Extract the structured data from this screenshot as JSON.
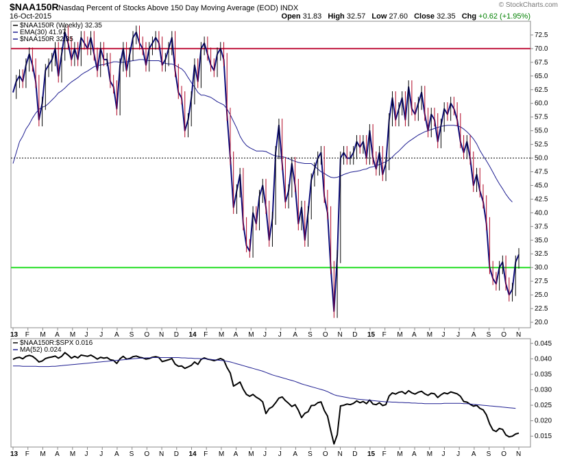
{
  "header": {
    "symbol": "$NAA150R",
    "title": "Nasdaq Percent of Stocks Above 150 Day Moving Average (EOD)",
    "exchange": "INDX",
    "date": "16-Oct-2015",
    "open_label": "Open",
    "open": "31.83",
    "high_label": "High",
    "high": "32.57",
    "low_label": "Low",
    "low": "27.60",
    "close_label": "Close",
    "close": "32.35",
    "chg_label": "Chg",
    "chg": "+0.62 (+1.95%)",
    "watermark": "© StockCharts.com",
    "colors": {
      "chg": "#008000"
    }
  },
  "chart_data": [
    {
      "type": "line",
      "legend": [
        "$NAA150R (Weekly) 32.35",
        "EMA(30) 41.97",
        "$NAA150R 32.35"
      ],
      "x_ticks": [
        "13",
        "F",
        "M",
        "A",
        "M",
        "J",
        "J",
        "A",
        "S",
        "O",
        "N",
        "D",
        "14",
        "F",
        "M",
        "A",
        "M",
        "J",
        "J",
        "A",
        "S",
        "O",
        "N",
        "D",
        "15",
        "F",
        "M",
        "A",
        "M",
        "J",
        "J",
        "A",
        "S",
        "O",
        "N"
      ],
      "y_ticks": [
        20,
        22.5,
        25,
        27.5,
        30,
        32.5,
        35,
        37.5,
        40,
        42.5,
        45,
        47.5,
        50,
        52.5,
        55,
        57.5,
        60,
        62.5,
        65,
        67.5,
        70,
        72.5
      ],
      "ylim": [
        19,
        75
      ],
      "hlines": [
        {
          "value": 70,
          "color": "#c0143c"
        },
        {
          "value": 50,
          "color": "#000000",
          "style": "dotted"
        },
        {
          "value": 30,
          "color": "#22dd22"
        }
      ],
      "series": [
        {
          "name": "$NAA150R (Weekly)",
          "color": "#0a0a78",
          "values": [
            62,
            64,
            65,
            64,
            67,
            69,
            67,
            64,
            57,
            60,
            66,
            67,
            68,
            70,
            65,
            69,
            73,
            71,
            68,
            70,
            68,
            72,
            71,
            70,
            72,
            69,
            66,
            70,
            68,
            68,
            64,
            63,
            59,
            67,
            70,
            66,
            69,
            72,
            73,
            71,
            70,
            67,
            70,
            71,
            72,
            71,
            67,
            68,
            70,
            72,
            66,
            62,
            61,
            55,
            57,
            61,
            67,
            64,
            70,
            71,
            69,
            67,
            66,
            69,
            70,
            68,
            58,
            50,
            41,
            44,
            47,
            38,
            34,
            33,
            40,
            38,
            43,
            45,
            41,
            35,
            39,
            51,
            56,
            49,
            42,
            44,
            49,
            45,
            38,
            41,
            35,
            40,
            46,
            48,
            50,
            51,
            43,
            40,
            30,
            22,
            32,
            50,
            51,
            50,
            50,
            51,
            53,
            52,
            53,
            50,
            55,
            50,
            48,
            51,
            47,
            49,
            57,
            61,
            57,
            59,
            61,
            57,
            63,
            59,
            58,
            60,
            62,
            58,
            55,
            58,
            57,
            53,
            56,
            59,
            58,
            60,
            59,
            57,
            53,
            51,
            53,
            50,
            45,
            47,
            44,
            42,
            38,
            30,
            28,
            27,
            30,
            31,
            27,
            25,
            26,
            31,
            32.35
          ]
        },
        {
          "name": "EMA(30)",
          "color": "#1c1c90",
          "values": [
            49,
            51,
            53,
            54,
            55.3,
            56.2,
            57.3,
            58.2,
            58.9,
            59.3,
            59.5,
            60,
            60.6,
            61.2,
            61.9,
            62.3,
            62.8,
            63.4,
            63.9,
            64.3,
            64.7,
            65.2,
            65.6,
            65.9,
            66.3,
            66.7,
            66.9,
            67,
            67.1,
            67.3,
            67.4,
            67.6,
            67.6,
            67.5,
            67.5,
            67.6,
            67.7,
            67.8,
            67.9,
            68,
            68,
            67.9,
            67.8,
            67.8,
            67.8,
            67.8,
            67.5,
            67.3,
            67.2,
            67.2,
            67,
            66.6,
            66.3,
            65.7,
            64.7,
            63.8,
            63,
            62,
            61.5,
            61.5,
            61.3,
            61.1,
            60.7,
            60.3,
            60,
            59.7,
            59,
            57.9,
            56.7,
            55.5,
            54,
            53,
            52.3,
            51.9,
            51.6,
            51.3,
            51.3,
            51.3,
            51.2,
            50.9,
            50.6,
            50.4,
            50.3,
            50.3,
            50.1,
            49.9,
            49.6,
            49.4,
            49.2,
            49.1,
            49,
            49,
            49,
            48.5,
            48,
            47.5,
            47.2,
            46.8,
            46.5,
            46.4,
            46.5,
            46.7,
            47,
            47.2,
            47.4,
            47.5,
            47.6,
            47.7,
            47.9,
            48,
            48.3,
            48.4,
            48.6,
            48.8,
            49.1,
            49.3,
            49.7,
            50.2,
            50.8,
            51.3,
            51.9,
            52.5,
            53,
            53.4,
            53.8,
            54.2,
            54.5,
            54.8,
            55,
            55.2,
            55.4,
            55.6,
            55.8,
            55.9,
            56,
            56,
            56,
            55.9,
            55.7,
            55.3,
            54.8,
            54.2,
            53.5,
            52.6,
            51.4,
            50.4,
            49.5,
            48.5,
            47.4,
            46.3,
            45.3,
            44.4,
            43.4,
            42.6,
            41.97
          ]
        }
      ]
    },
    {
      "type": "line",
      "legend": [
        "$NAA150R:$SPX 0.016",
        "MA(52) 0.024"
      ],
      "x_ticks": [
        "13",
        "F",
        "M",
        "A",
        "M",
        "J",
        "J",
        "A",
        "S",
        "O",
        "N",
        "D",
        "14",
        "F",
        "M",
        "A",
        "M",
        "J",
        "J",
        "A",
        "S",
        "O",
        "N",
        "D",
        "15",
        "F",
        "M",
        "A",
        "M",
        "J",
        "J",
        "A",
        "S",
        "O",
        "N"
      ],
      "y_ticks": [
        0.015,
        0.02,
        0.025,
        0.03,
        0.035,
        0.04,
        0.045
      ],
      "ylim": [
        0.0115,
        0.0465
      ],
      "series": [
        {
          "name": "$NAA150R:$SPX",
          "color": "#000000",
          "values": [
            0.0398,
            0.0403,
            0.0405,
            0.04,
            0.0408,
            0.0411,
            0.0408,
            0.04,
            0.039,
            0.0393,
            0.0401,
            0.0404,
            0.0406,
            0.0409,
            0.0402,
            0.0408,
            0.042,
            0.0412,
            0.0402,
            0.0408,
            0.0403,
            0.0412,
            0.041,
            0.0408,
            0.0412,
            0.0406,
            0.0399,
            0.0405,
            0.0402,
            0.0404,
            0.0397,
            0.0395,
            0.0385,
            0.04,
            0.0408,
            0.0399,
            0.0401,
            0.0407,
            0.0409,
            0.0405,
            0.0403,
            0.0399,
            0.0401,
            0.0405,
            0.0407,
            0.0404,
            0.0391,
            0.0394,
            0.0397,
            0.0401,
            0.0383,
            0.0376,
            0.0377,
            0.0369,
            0.0374,
            0.0379,
            0.039,
            0.0382,
            0.0398,
            0.0403,
            0.0399,
            0.0397,
            0.0394,
            0.0397,
            0.0401,
            0.0396,
            0.0372,
            0.0354,
            0.0312,
            0.0318,
            0.0325,
            0.0302,
            0.0285,
            0.0279,
            0.0285,
            0.0276,
            0.027,
            0.0261,
            0.0223,
            0.0239,
            0.0245,
            0.0258,
            0.0273,
            0.0277,
            0.0265,
            0.0256,
            0.0246,
            0.0252,
            0.0234,
            0.021,
            0.0224,
            0.0229,
            0.0249,
            0.025,
            0.0258,
            0.0261,
            0.0233,
            0.0215,
            0.0168,
            0.0125,
            0.0155,
            0.0248,
            0.025,
            0.0254,
            0.0252,
            0.0256,
            0.0264,
            0.0258,
            0.0262,
            0.0255,
            0.0267,
            0.0254,
            0.0252,
            0.0258,
            0.0249,
            0.0252,
            0.028,
            0.029,
            0.0286,
            0.0292,
            0.0294,
            0.0287,
            0.0297,
            0.029,
            0.0286,
            0.0292,
            0.0295,
            0.0287,
            0.0282,
            0.0289,
            0.0287,
            0.0275,
            0.0284,
            0.029,
            0.0287,
            0.0293,
            0.029,
            0.0287,
            0.0279,
            0.0262,
            0.026,
            0.0253,
            0.0247,
            0.025,
            0.024,
            0.0235,
            0.0219,
            0.019,
            0.017,
            0.0165,
            0.0175,
            0.0172,
            0.0154,
            0.0148,
            0.015,
            0.0157,
            0.016
          ]
        },
        {
          "name": "MA(52)",
          "color": "#1c1c90",
          "values": [
            0.0377,
            0.0377,
            0.0377,
            0.0376,
            0.0376,
            0.0376,
            0.0376,
            0.0376,
            0.0375,
            0.0375,
            0.0375,
            0.0375,
            0.0376,
            0.0376,
            0.0377,
            0.0378,
            0.0379,
            0.038,
            0.0381,
            0.0382,
            0.0383,
            0.0384,
            0.0385,
            0.0386,
            0.0387,
            0.0388,
            0.0389,
            0.039,
            0.0391,
            0.0392,
            0.0393,
            0.0394,
            0.0395,
            0.0396,
            0.0397,
            0.0398,
            0.0399,
            0.04,
            0.0401,
            0.0402,
            0.0402,
            0.0403,
            0.0403,
            0.0404,
            0.0404,
            0.0404,
            0.0404,
            0.0404,
            0.0404,
            0.0404,
            0.0404,
            0.0404,
            0.0403,
            0.0403,
            0.0402,
            0.0402,
            0.0401,
            0.0401,
            0.04,
            0.04,
            0.0399,
            0.0398,
            0.0397,
            0.0396,
            0.0395,
            0.0394,
            0.0392,
            0.039,
            0.0387,
            0.0384,
            0.0381,
            0.0378,
            0.0375,
            0.0372,
            0.0369,
            0.0366,
            0.0363,
            0.036,
            0.0356,
            0.0352,
            0.0348,
            0.0345,
            0.0342,
            0.0339,
            0.0336,
            0.0333,
            0.033,
            0.0327,
            0.0323,
            0.0319,
            0.0316,
            0.0313,
            0.031,
            0.0307,
            0.0304,
            0.0301,
            0.0298,
            0.0294,
            0.0289,
            0.0284,
            0.0281,
            0.0279,
            0.0277,
            0.0275,
            0.0273,
            0.0272,
            0.027,
            0.0269,
            0.0268,
            0.0267,
            0.0266,
            0.0265,
            0.0264,
            0.0263,
            0.0262,
            0.0261,
            0.0261,
            0.026,
            0.026,
            0.0259,
            0.0259,
            0.0258,
            0.0258,
            0.0257,
            0.0257,
            0.0256,
            0.0256,
            0.0255,
            0.0255,
            0.0255,
            0.0255,
            0.0255,
            0.0255,
            0.0256,
            0.0256,
            0.0256,
            0.0256,
            0.0256,
            0.0256,
            0.0255,
            0.0255,
            0.0254,
            0.0253,
            0.0252,
            0.0251,
            0.025,
            0.0249,
            0.0248,
            0.0247,
            0.0246,
            0.0245,
            0.0244,
            0.0243,
            0.0242,
            0.0241,
            0.024
          ]
        }
      ]
    }
  ]
}
